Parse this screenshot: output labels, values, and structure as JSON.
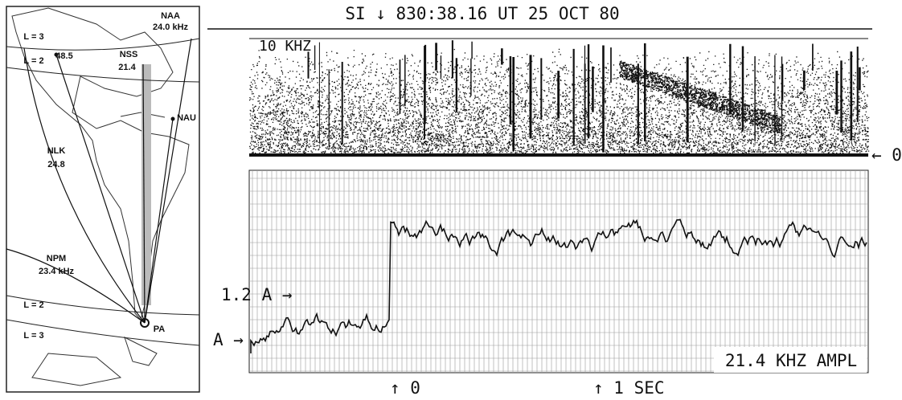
{
  "map": {
    "labels": [
      "NAA",
      "24.0 kHz",
      "L = 3",
      "L = 2",
      "48.5",
      "NSS",
      "21.4",
      "NAU",
      "NLK",
      "24.8",
      "NPM",
      "23.4 kHz",
      "L = 2",
      "L = 3",
      "PA"
    ]
  },
  "header": {
    "title": "SI ↓ 830:38.16 UT 25 OCT 80"
  },
  "spectrogram": {
    "scale_label": "10 KHZ",
    "zero_label": "← 0"
  },
  "amplitude": {
    "level_label_high": "1.2 A →",
    "level_label_low": "A →",
    "panel_label": "21.4 KHZ AMPL"
  },
  "time_axis": {
    "start_label": "↑ 0",
    "end_label": "↑ 1 SEC"
  }
}
